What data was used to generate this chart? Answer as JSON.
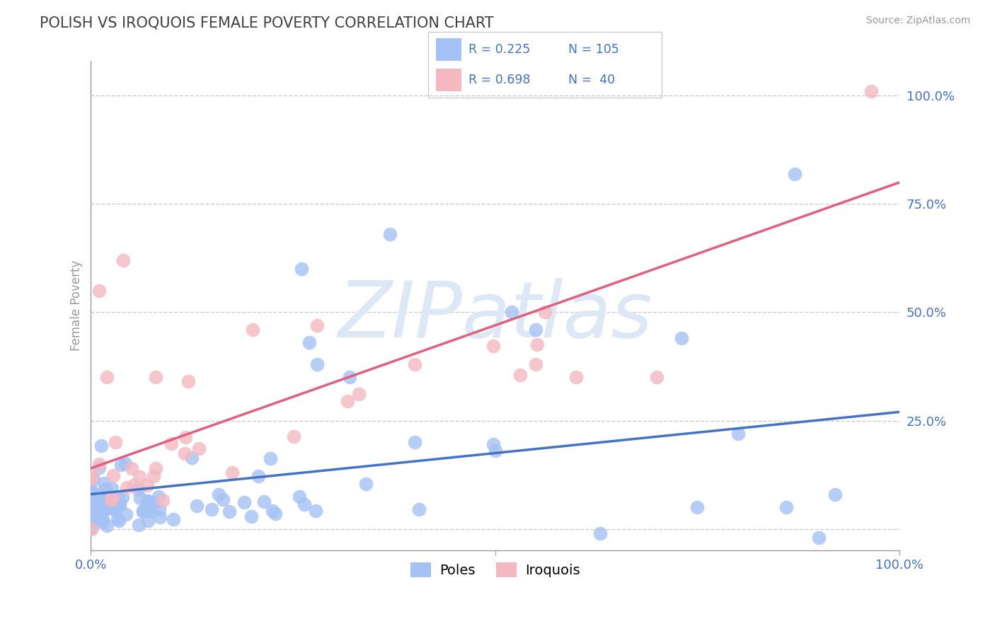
{
  "title": "POLISH VS IROQUOIS FEMALE POVERTY CORRELATION CHART",
  "source_text": "Source: ZipAtlas.com",
  "ylabel": "Female Poverty",
  "xlim": [
    0.0,
    1.0
  ],
  "ylim": [
    -0.05,
    1.08
  ],
  "xticklabels": [
    "0.0%",
    "100.0%"
  ],
  "ytick_positions": [
    0.0,
    0.25,
    0.5,
    0.75,
    1.0
  ],
  "ytick_labels": [
    "",
    "25.0%",
    "50.0%",
    "75.0%",
    "100.0%"
  ],
  "blue_color": "#a4c2f4",
  "pink_color": "#f4b8c1",
  "blue_line_color": "#4472c4",
  "pink_line_color": "#e06080",
  "label_color": "#4472c4",
  "title_color": "#404040",
  "axis_color": "#999999",
  "grid_color": "#cccccc",
  "watermark": "ZIPatlas",
  "watermark_color": "#dce8f5",
  "legend_label_blue": "Poles",
  "legend_label_pink": "Iroquois",
  "blue_R": "0.225",
  "blue_N": "105",
  "pink_R": "0.698",
  "pink_N": " 40"
}
